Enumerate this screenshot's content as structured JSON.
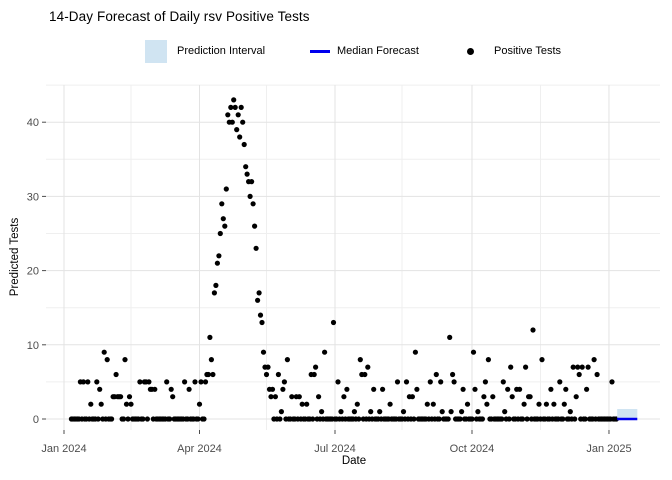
{
  "title": "14-Day Forecast of Daily rsv Positive Tests",
  "legend": {
    "items": [
      {
        "label": "Prediction Interval",
        "swatch": "rect",
        "color": "#d0e4f2"
      },
      {
        "label": "Median Forecast",
        "swatch": "line",
        "color": "#0000ee"
      },
      {
        "label": "Positive Tests",
        "swatch": "point",
        "color": "#000000"
      }
    ]
  },
  "chart_data": {
    "type": "scatter",
    "title": "14-Day Forecast of Daily rsv Positive Tests",
    "xlabel": "Date",
    "ylabel": "Predicted Tests",
    "x_axis": {
      "start_date": "2024-01-01",
      "tick_labels": [
        "Jan 2024",
        "Apr 2024",
        "Jul 2024",
        "Oct 2024",
        "Jan 2025"
      ],
      "tick_days": [
        0,
        91,
        182,
        274,
        366
      ],
      "minor_grid_days": [
        45,
        136,
        227,
        320
      ]
    },
    "y_axis": {
      "tick_values": [
        0,
        10,
        20,
        30,
        40
      ],
      "tick_labels": [
        "0",
        "10",
        "20",
        "30",
        "40"
      ],
      "minor_grid_values": [
        5,
        15,
        25,
        35,
        45
      ],
      "lim": [
        0,
        45
      ]
    },
    "observed": {
      "description": "Daily rsv positive test counts; days offset from 2024-01-01; days not listed have value 0",
      "day_range": [
        5,
        371
      ],
      "default_value": 0,
      "nonzero_points": [
        [
          11,
          5
        ],
        [
          13,
          5
        ],
        [
          16,
          5
        ],
        [
          18,
          2
        ],
        [
          22,
          5
        ],
        [
          24,
          4
        ],
        [
          25,
          2
        ],
        [
          27,
          9
        ],
        [
          29,
          8
        ],
        [
          33,
          3
        ],
        [
          34,
          3
        ],
        [
          35,
          6
        ],
        [
          36,
          3
        ],
        [
          37,
          3
        ],
        [
          38,
          3
        ],
        [
          41,
          8
        ],
        [
          42,
          2
        ],
        [
          44,
          3
        ],
        [
          45,
          2
        ],
        [
          51,
          5
        ],
        [
          54,
          5
        ],
        [
          55,
          5
        ],
        [
          57,
          5
        ],
        [
          58,
          4
        ],
        [
          59,
          4
        ],
        [
          61,
          4
        ],
        [
          69,
          5
        ],
        [
          72,
          4
        ],
        [
          73,
          3
        ],
        [
          81,
          5
        ],
        [
          84,
          4
        ],
        [
          88,
          5
        ],
        [
          91,
          2
        ],
        [
          92,
          5
        ],
        [
          95,
          5
        ],
        [
          96,
          6
        ],
        [
          97,
          6
        ],
        [
          98,
          11
        ],
        [
          99,
          8
        ],
        [
          100,
          6
        ],
        [
          101,
          17
        ],
        [
          102,
          18
        ],
        [
          103,
          21
        ],
        [
          104,
          22
        ],
        [
          105,
          25
        ],
        [
          106,
          29
        ],
        [
          107,
          27
        ],
        [
          108,
          26
        ],
        [
          109,
          31
        ],
        [
          110,
          41
        ],
        [
          111,
          40
        ],
        [
          112,
          42
        ],
        [
          113,
          40
        ],
        [
          114,
          43
        ],
        [
          115,
          42
        ],
        [
          116,
          39
        ],
        [
          117,
          41
        ],
        [
          118,
          38
        ],
        [
          119,
          42
        ],
        [
          120,
          40
        ],
        [
          121,
          37
        ],
        [
          122,
          34
        ],
        [
          123,
          33
        ],
        [
          124,
          32
        ],
        [
          125,
          30
        ],
        [
          126,
          32
        ],
        [
          127,
          29
        ],
        [
          128,
          26
        ],
        [
          129,
          23
        ],
        [
          130,
          16
        ],
        [
          131,
          17
        ],
        [
          132,
          14
        ],
        [
          133,
          13
        ],
        [
          134,
          9
        ],
        [
          135,
          7
        ],
        [
          136,
          6
        ],
        [
          137,
          7
        ],
        [
          138,
          4
        ],
        [
          139,
          3
        ],
        [
          140,
          4
        ],
        [
          142,
          3
        ],
        [
          144,
          6
        ],
        [
          146,
          1
        ],
        [
          147,
          4
        ],
        [
          148,
          5
        ],
        [
          150,
          8
        ],
        [
          153,
          3
        ],
        [
          156,
          3
        ],
        [
          158,
          3
        ],
        [
          160,
          2
        ],
        [
          163,
          2
        ],
        [
          166,
          6
        ],
        [
          168,
          6
        ],
        [
          169,
          7
        ],
        [
          171,
          3
        ],
        [
          173,
          1
        ],
        [
          175,
          9
        ],
        [
          181,
          13
        ],
        [
          184,
          5
        ],
        [
          186,
          1
        ],
        [
          188,
          3
        ],
        [
          190,
          4
        ],
        [
          195,
          1
        ],
        [
          197,
          2
        ],
        [
          199,
          8
        ],
        [
          200,
          6
        ],
        [
          202,
          6
        ],
        [
          204,
          7
        ],
        [
          206,
          1
        ],
        [
          208,
          4
        ],
        [
          212,
          1
        ],
        [
          214,
          4
        ],
        [
          219,
          2
        ],
        [
          224,
          5
        ],
        [
          228,
          1
        ],
        [
          230,
          5
        ],
        [
          232,
          3
        ],
        [
          234,
          3
        ],
        [
          236,
          9
        ],
        [
          237,
          4
        ],
        [
          244,
          2
        ],
        [
          246,
          5
        ],
        [
          248,
          2
        ],
        [
          250,
          6
        ],
        [
          253,
          5
        ],
        [
          254,
          1
        ],
        [
          259,
          11
        ],
        [
          260,
          1
        ],
        [
          261,
          6
        ],
        [
          262,
          5
        ],
        [
          267,
          1
        ],
        [
          268,
          4
        ],
        [
          271,
          2
        ],
        [
          275,
          9
        ],
        [
          276,
          4
        ],
        [
          278,
          1
        ],
        [
          282,
          3
        ],
        [
          283,
          5
        ],
        [
          284,
          2
        ],
        [
          285,
          8
        ],
        [
          288,
          3
        ],
        [
          295,
          5
        ],
        [
          296,
          1
        ],
        [
          298,
          4
        ],
        [
          300,
          7
        ],
        [
          301,
          3
        ],
        [
          304,
          4
        ],
        [
          306,
          4
        ],
        [
          309,
          2
        ],
        [
          310,
          7
        ],
        [
          312,
          3
        ],
        [
          313,
          3
        ],
        [
          315,
          12
        ],
        [
          319,
          2
        ],
        [
          321,
          8
        ],
        [
          324,
          2
        ],
        [
          327,
          4
        ],
        [
          329,
          2
        ],
        [
          333,
          5
        ],
        [
          336,
          2
        ],
        [
          337,
          4
        ],
        [
          340,
          1
        ],
        [
          342,
          7
        ],
        [
          344,
          3
        ],
        [
          345,
          7
        ],
        [
          346,
          6
        ],
        [
          348,
          7
        ],
        [
          351,
          4
        ],
        [
          352,
          7
        ],
        [
          356,
          8
        ],
        [
          358,
          6
        ],
        [
          368,
          5
        ]
      ]
    },
    "forecast": {
      "day_start": 371.5,
      "day_end": 385,
      "median": 0,
      "interval": [
        0.15,
        1.35
      ]
    },
    "colors": {
      "point": "#000000",
      "interval_fill": "#d0e4f2",
      "median_line": "#0000ee",
      "grid_major": "#e3e3e3",
      "grid_minor": "#efefef",
      "tick_mark": "#4d4d4d",
      "tick_text": "#4d4d4d"
    }
  }
}
